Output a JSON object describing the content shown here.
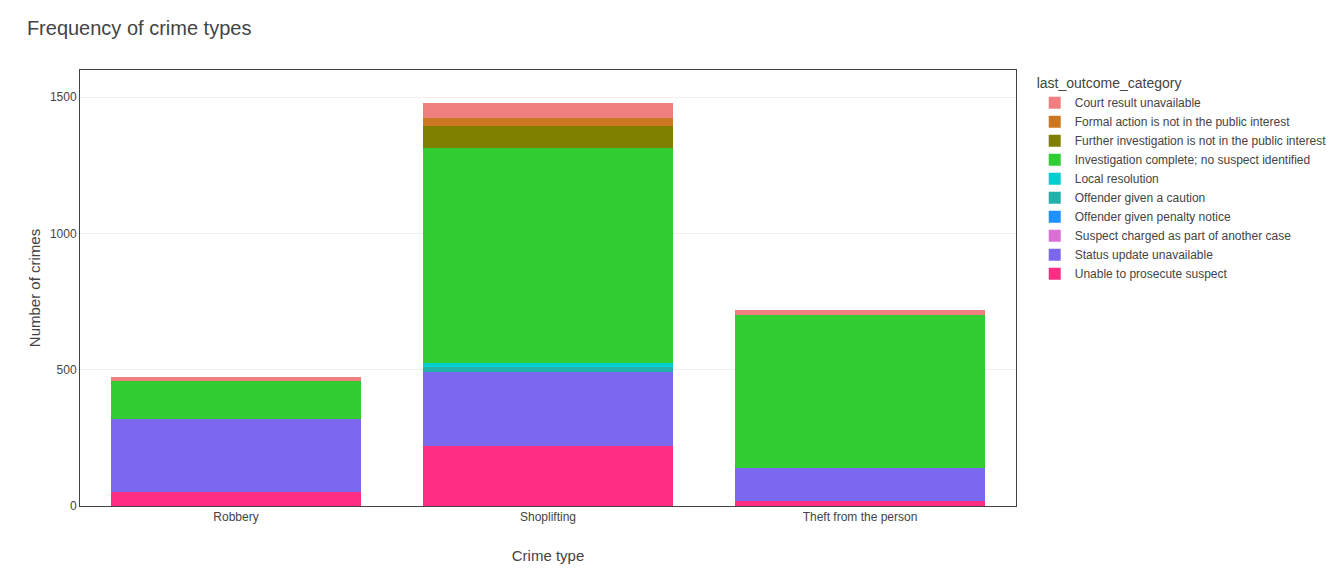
{
  "chart_data": {
    "type": "bar",
    "stacked": true,
    "title": "Frequency of crime types",
    "x_label": "Crime type",
    "y_label": "Number of crimes",
    "legend_title": "last_outcome_category",
    "legend": "right",
    "grid": true,
    "categories": [
      "Robbery",
      "Shoplifting",
      "Theft from the person"
    ],
    "series": [
      {
        "name": "Unable to prosecute suspect",
        "color": "#FF2D84",
        "values": [
          50,
          220,
          20
        ]
      },
      {
        "name": "Status update unavailable",
        "color": "#7B68EE",
        "values": [
          270,
          270,
          120
        ]
      },
      {
        "name": "Suspect charged as part of another case",
        "color": "#DA70D6",
        "values": [
          0,
          0,
          0
        ]
      },
      {
        "name": "Offender given penalty notice",
        "color": "#1E90FF",
        "values": [
          0,
          0,
          0
        ]
      },
      {
        "name": "Offender given a caution",
        "color": "#20B2AA",
        "values": [
          0,
          20,
          0
        ]
      },
      {
        "name": "Local resolution",
        "color": "#00CED1",
        "values": [
          0,
          15,
          0
        ]
      },
      {
        "name": "Investigation complete; no suspect identified",
        "color": "#32CD32",
        "values": [
          140,
          790,
          560
        ]
      },
      {
        "name": "Further investigation is not in the public interest",
        "color": "#808000",
        "values": [
          0,
          80,
          0
        ]
      },
      {
        "name": "Formal action is not in the public interest",
        "color": "#CC7722",
        "values": [
          0,
          30,
          0
        ]
      },
      {
        "name": "Court result unavailable",
        "color": "#F08080",
        "values": [
          15,
          55,
          20
        ]
      }
    ],
    "ylim": [
      0,
      1600
    ],
    "yticks": [
      0,
      500,
      1000,
      1500
    ]
  }
}
